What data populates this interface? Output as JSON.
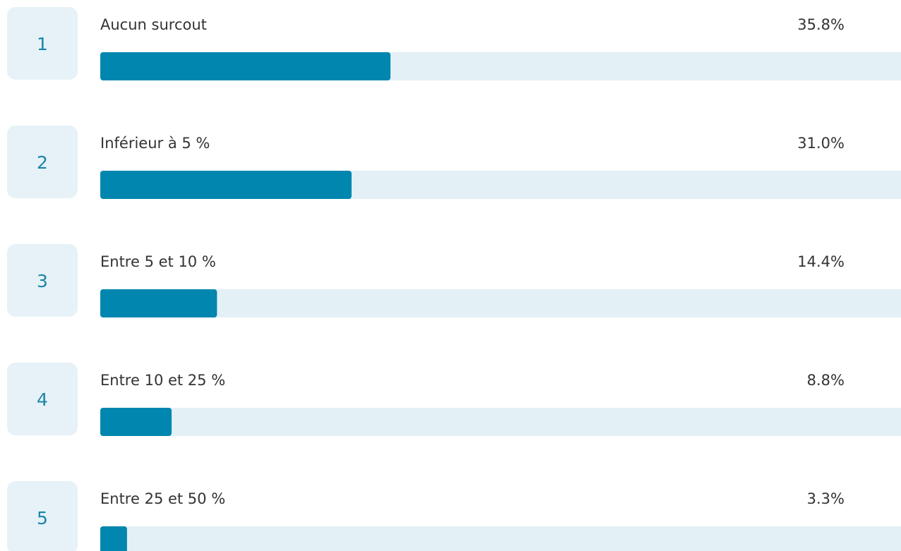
{
  "chart_data": {
    "type": "bar",
    "orientation": "horizontal",
    "ranks": [
      1,
      2,
      3,
      4,
      5
    ],
    "categories": [
      "Aucun surcout",
      "Inférieur à 5 %",
      "Entre 5 et 10 %",
      "Entre 10 et 25 %",
      "Entre 25 et 50 %"
    ],
    "values": [
      35.8,
      31,
      14.4,
      8.8,
      3.3
    ],
    "value_labels": [
      "35.8%",
      "31.0%",
      "14.4%",
      "8.8%",
      "3.3%"
    ],
    "color": "#0086af",
    "xlim": [
      0,
      100
    ]
  }
}
